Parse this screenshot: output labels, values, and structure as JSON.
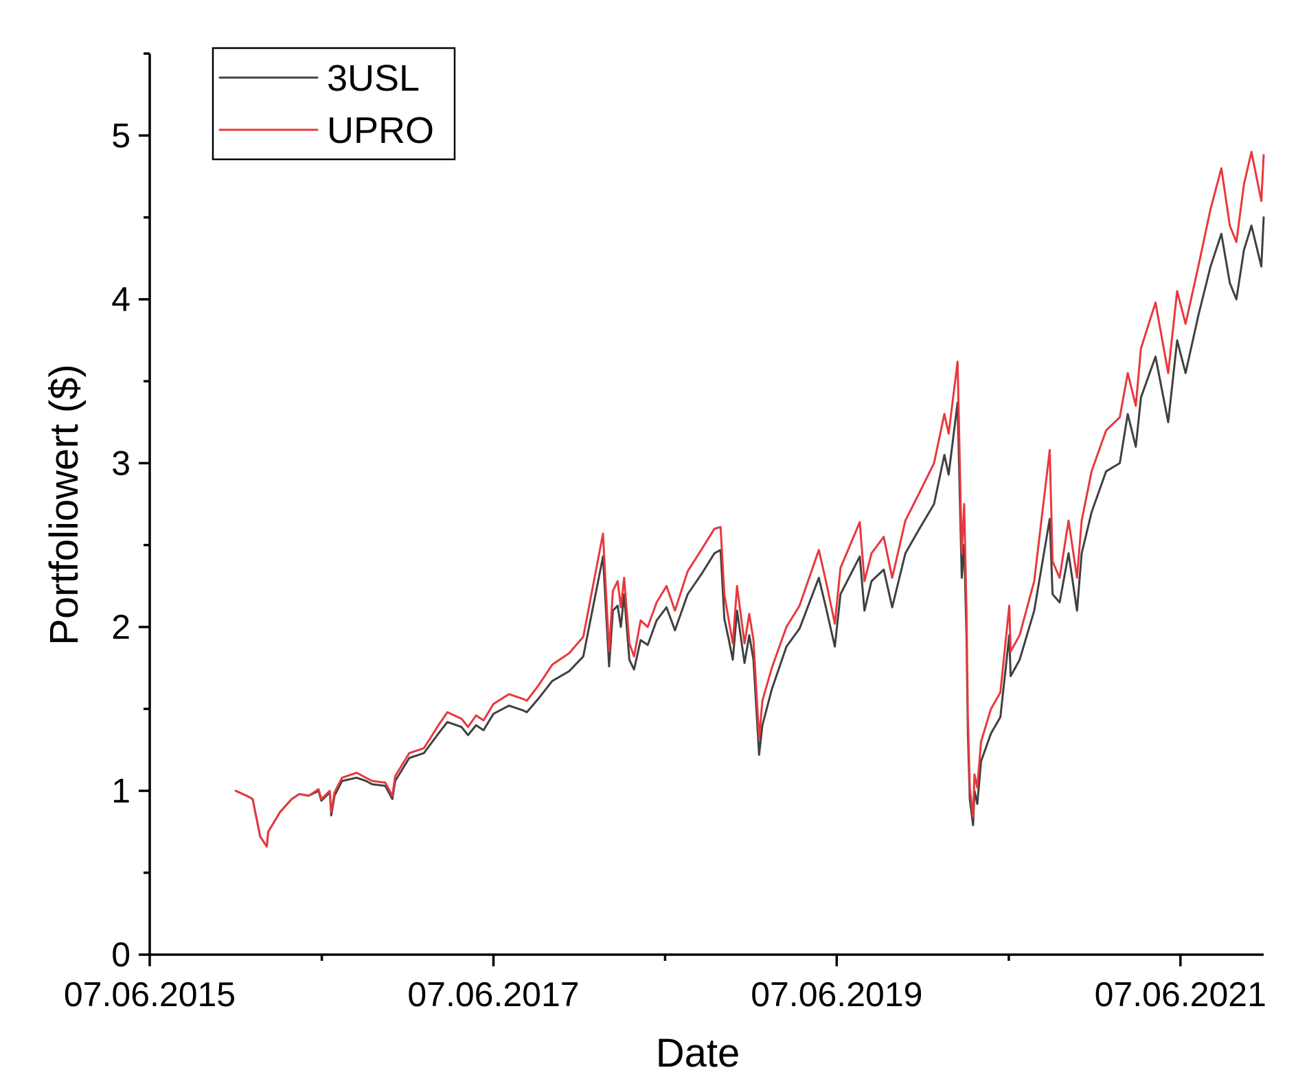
{
  "chart_data": {
    "type": "line",
    "title": "",
    "xlabel": "Date",
    "ylabel": "Portfoliowert ($)",
    "xlim": [
      "2015-06-07",
      "2021-12-01"
    ],
    "ylim": [
      0,
      5.5
    ],
    "x_ticks": [
      {
        "date": "2015-06-07",
        "label": "07.06.2015"
      },
      {
        "date": "2017-06-07",
        "label": "07.06.2017"
      },
      {
        "date": "2019-06-07",
        "label": "07.06.2019"
      },
      {
        "date": "2021-06-07",
        "label": "07.06.2021"
      }
    ],
    "x_minor_ticks": [
      "2016-06-07",
      "2018-06-07",
      "2020-06-07"
    ],
    "y_ticks": [
      0,
      1,
      2,
      3,
      4,
      5
    ],
    "y_minor_step": 0.5,
    "grid": false,
    "legend_position": "top-left",
    "series": [
      {
        "name": "3USL",
        "color": "#404040",
        "points": [
          [
            "2015-12-07",
            1.0
          ],
          [
            "2015-12-30",
            0.97
          ],
          [
            "2016-01-12",
            0.95
          ],
          [
            "2016-01-28",
            0.72
          ],
          [
            "2016-02-11",
            0.66
          ],
          [
            "2016-02-14",
            0.75
          ],
          [
            "2016-03-10",
            0.87
          ],
          [
            "2016-04-04",
            0.95
          ],
          [
            "2016-04-20",
            0.98
          ],
          [
            "2016-05-10",
            0.97
          ],
          [
            "2016-05-31",
            1.0
          ],
          [
            "2016-06-06",
            0.94
          ],
          [
            "2016-06-24",
            0.99
          ],
          [
            "2016-06-27",
            0.85
          ],
          [
            "2016-07-04",
            0.97
          ],
          [
            "2016-07-20",
            1.06
          ],
          [
            "2016-08-20",
            1.08
          ],
          [
            "2016-09-09",
            1.06
          ],
          [
            "2016-09-22",
            1.04
          ],
          [
            "2016-10-20",
            1.03
          ],
          [
            "2016-11-04",
            0.95
          ],
          [
            "2016-11-10",
            1.06
          ],
          [
            "2016-12-10",
            1.2
          ],
          [
            "2017-01-10",
            1.23
          ],
          [
            "2017-02-10",
            1.35
          ],
          [
            "2017-03-01",
            1.42
          ],
          [
            "2017-03-31",
            1.39
          ],
          [
            "2017-04-14",
            1.34
          ],
          [
            "2017-05-01",
            1.4
          ],
          [
            "2017-05-17",
            1.37
          ],
          [
            "2017-06-07",
            1.47
          ],
          [
            "2017-07-10",
            1.52
          ],
          [
            "2017-08-10",
            1.49
          ],
          [
            "2017-08-17",
            1.48
          ],
          [
            "2017-09-10",
            1.56
          ],
          [
            "2017-10-10",
            1.67
          ],
          [
            "2017-11-15",
            1.73
          ],
          [
            "2017-12-15",
            1.82
          ],
          [
            "2018-01-26",
            2.43
          ],
          [
            "2018-02-08",
            1.76
          ],
          [
            "2018-02-16",
            2.1
          ],
          [
            "2018-02-26",
            2.13
          ],
          [
            "2018-03-05",
            2.0
          ],
          [
            "2018-03-12",
            2.2
          ],
          [
            "2018-03-23",
            1.8
          ],
          [
            "2018-04-02",
            1.74
          ],
          [
            "2018-04-16",
            1.92
          ],
          [
            "2018-05-01",
            1.89
          ],
          [
            "2018-05-20",
            2.04
          ],
          [
            "2018-06-10",
            2.12
          ],
          [
            "2018-06-28",
            1.98
          ],
          [
            "2018-07-25",
            2.2
          ],
          [
            "2018-08-25",
            2.33
          ],
          [
            "2018-09-20",
            2.45
          ],
          [
            "2018-10-03",
            2.47
          ],
          [
            "2018-10-11",
            2.05
          ],
          [
            "2018-10-20",
            1.93
          ],
          [
            "2018-10-29",
            1.8
          ],
          [
            "2018-11-07",
            2.1
          ],
          [
            "2018-11-23",
            1.78
          ],
          [
            "2018-12-03",
            1.95
          ],
          [
            "2018-12-12",
            1.8
          ],
          [
            "2018-12-24",
            1.22
          ],
          [
            "2018-12-31",
            1.4
          ],
          [
            "2019-01-20",
            1.62
          ],
          [
            "2019-02-20",
            1.88
          ],
          [
            "2019-03-20",
            1.99
          ],
          [
            "2019-04-30",
            2.3
          ],
          [
            "2019-05-15",
            2.12
          ],
          [
            "2019-06-03",
            1.88
          ],
          [
            "2019-06-15",
            2.2
          ],
          [
            "2019-07-26",
            2.43
          ],
          [
            "2019-08-05",
            2.1
          ],
          [
            "2019-08-20",
            2.28
          ],
          [
            "2019-09-15",
            2.35
          ],
          [
            "2019-10-03",
            2.12
          ],
          [
            "2019-10-31",
            2.45
          ],
          [
            "2019-11-30",
            2.6
          ],
          [
            "2019-12-31",
            2.75
          ],
          [
            "2020-01-22",
            3.05
          ],
          [
            "2020-01-31",
            2.93
          ],
          [
            "2020-02-19",
            3.37
          ],
          [
            "2020-02-28",
            2.3
          ],
          [
            "2020-03-04",
            2.5
          ],
          [
            "2020-03-09",
            1.95
          ],
          [
            "2020-03-12",
            1.35
          ],
          [
            "2020-03-16",
            0.95
          ],
          [
            "2020-03-23",
            0.79
          ],
          [
            "2020-03-26",
            1.0
          ],
          [
            "2020-04-01",
            0.92
          ],
          [
            "2020-04-09",
            1.18
          ],
          [
            "2020-04-30",
            1.35
          ],
          [
            "2020-05-20",
            1.45
          ],
          [
            "2020-06-08",
            1.95
          ],
          [
            "2020-06-11",
            1.7
          ],
          [
            "2020-06-30",
            1.8
          ],
          [
            "2020-07-31",
            2.1
          ],
          [
            "2020-09-02",
            2.66
          ],
          [
            "2020-09-08",
            2.2
          ],
          [
            "2020-09-23",
            2.15
          ],
          [
            "2020-10-12",
            2.45
          ],
          [
            "2020-10-30",
            2.1
          ],
          [
            "2020-11-09",
            2.45
          ],
          [
            "2020-11-30",
            2.7
          ],
          [
            "2020-12-31",
            2.95
          ],
          [
            "2021-01-29",
            3.0
          ],
          [
            "2021-02-15",
            3.3
          ],
          [
            "2021-03-04",
            3.1
          ],
          [
            "2021-03-15",
            3.4
          ],
          [
            "2021-04-15",
            3.65
          ],
          [
            "2021-05-12",
            3.25
          ],
          [
            "2021-05-31",
            3.75
          ],
          [
            "2021-06-18",
            3.55
          ],
          [
            "2021-07-15",
            3.9
          ],
          [
            "2021-08-10",
            4.2
          ],
          [
            "2021-09-02",
            4.4
          ],
          [
            "2021-09-20",
            4.1
          ],
          [
            "2021-10-04",
            4.0
          ],
          [
            "2021-10-20",
            4.3
          ],
          [
            "2021-11-05",
            4.45
          ],
          [
            "2021-11-26",
            4.2
          ],
          [
            "2021-12-01",
            4.5
          ]
        ]
      },
      {
        "name": "UPRO",
        "color": "#e8383d",
        "points": [
          [
            "2015-12-07",
            1.0
          ],
          [
            "2015-12-30",
            0.97
          ],
          [
            "2016-01-12",
            0.95
          ],
          [
            "2016-01-28",
            0.72
          ],
          [
            "2016-02-11",
            0.66
          ],
          [
            "2016-02-14",
            0.75
          ],
          [
            "2016-03-10",
            0.87
          ],
          [
            "2016-04-04",
            0.95
          ],
          [
            "2016-04-20",
            0.98
          ],
          [
            "2016-05-10",
            0.97
          ],
          [
            "2016-05-31",
            1.01
          ],
          [
            "2016-06-06",
            0.95
          ],
          [
            "2016-06-24",
            1.0
          ],
          [
            "2016-06-27",
            0.87
          ],
          [
            "2016-07-04",
            0.99
          ],
          [
            "2016-07-20",
            1.08
          ],
          [
            "2016-08-20",
            1.11
          ],
          [
            "2016-09-09",
            1.08
          ],
          [
            "2016-09-22",
            1.06
          ],
          [
            "2016-10-20",
            1.05
          ],
          [
            "2016-11-04",
            0.97
          ],
          [
            "2016-11-10",
            1.09
          ],
          [
            "2016-12-10",
            1.23
          ],
          [
            "2017-01-10",
            1.26
          ],
          [
            "2017-02-10",
            1.4
          ],
          [
            "2017-03-01",
            1.48
          ],
          [
            "2017-03-31",
            1.44
          ],
          [
            "2017-04-14",
            1.39
          ],
          [
            "2017-05-01",
            1.46
          ],
          [
            "2017-05-17",
            1.43
          ],
          [
            "2017-06-07",
            1.53
          ],
          [
            "2017-07-10",
            1.59
          ],
          [
            "2017-08-10",
            1.56
          ],
          [
            "2017-08-17",
            1.55
          ],
          [
            "2017-09-10",
            1.64
          ],
          [
            "2017-10-10",
            1.77
          ],
          [
            "2017-11-15",
            1.84
          ],
          [
            "2017-12-15",
            1.94
          ],
          [
            "2018-01-26",
            2.57
          ],
          [
            "2018-02-08",
            1.85
          ],
          [
            "2018-02-16",
            2.22
          ],
          [
            "2018-02-26",
            2.28
          ],
          [
            "2018-03-05",
            2.12
          ],
          [
            "2018-03-12",
            2.3
          ],
          [
            "2018-03-23",
            1.9
          ],
          [
            "2018-04-02",
            1.82
          ],
          [
            "2018-04-16",
            2.04
          ],
          [
            "2018-05-01",
            2.0
          ],
          [
            "2018-05-20",
            2.15
          ],
          [
            "2018-06-10",
            2.25
          ],
          [
            "2018-06-28",
            2.1
          ],
          [
            "2018-07-25",
            2.34
          ],
          [
            "2018-08-25",
            2.48
          ],
          [
            "2018-09-20",
            2.6
          ],
          [
            "2018-10-03",
            2.61
          ],
          [
            "2018-10-11",
            2.2
          ],
          [
            "2018-10-20",
            2.05
          ],
          [
            "2018-10-29",
            1.9
          ],
          [
            "2018-11-07",
            2.25
          ],
          [
            "2018-11-23",
            1.9
          ],
          [
            "2018-12-03",
            2.08
          ],
          [
            "2018-12-12",
            1.92
          ],
          [
            "2018-12-24",
            1.32
          ],
          [
            "2018-12-31",
            1.55
          ],
          [
            "2019-01-20",
            1.75
          ],
          [
            "2019-02-20",
            2.0
          ],
          [
            "2019-03-20",
            2.13
          ],
          [
            "2019-04-30",
            2.47
          ],
          [
            "2019-05-15",
            2.28
          ],
          [
            "2019-06-03",
            2.02
          ],
          [
            "2019-06-15",
            2.36
          ],
          [
            "2019-07-26",
            2.64
          ],
          [
            "2019-08-05",
            2.28
          ],
          [
            "2019-08-20",
            2.45
          ],
          [
            "2019-09-15",
            2.55
          ],
          [
            "2019-10-03",
            2.3
          ],
          [
            "2019-10-31",
            2.65
          ],
          [
            "2019-11-30",
            2.82
          ],
          [
            "2019-12-31",
            3.0
          ],
          [
            "2020-01-22",
            3.3
          ],
          [
            "2020-01-31",
            3.18
          ],
          [
            "2020-02-19",
            3.62
          ],
          [
            "2020-02-28",
            2.45
          ],
          [
            "2020-03-04",
            2.75
          ],
          [
            "2020-03-09",
            2.1
          ],
          [
            "2020-03-12",
            1.45
          ],
          [
            "2020-03-16",
            1.02
          ],
          [
            "2020-03-23",
            0.84
          ],
          [
            "2020-03-26",
            1.1
          ],
          [
            "2020-04-01",
            1.02
          ],
          [
            "2020-04-09",
            1.3
          ],
          [
            "2020-04-30",
            1.5
          ],
          [
            "2020-05-20",
            1.6
          ],
          [
            "2020-06-08",
            2.13
          ],
          [
            "2020-06-11",
            1.85
          ],
          [
            "2020-06-30",
            1.95
          ],
          [
            "2020-07-31",
            2.28
          ],
          [
            "2020-09-02",
            3.08
          ],
          [
            "2020-09-08",
            2.4
          ],
          [
            "2020-09-23",
            2.3
          ],
          [
            "2020-10-12",
            2.65
          ],
          [
            "2020-10-30",
            2.3
          ],
          [
            "2020-11-09",
            2.65
          ],
          [
            "2020-11-30",
            2.95
          ],
          [
            "2020-12-31",
            3.2
          ],
          [
            "2021-01-29",
            3.28
          ],
          [
            "2021-02-15",
            3.55
          ],
          [
            "2021-03-04",
            3.35
          ],
          [
            "2021-03-15",
            3.7
          ],
          [
            "2021-04-15",
            3.98
          ],
          [
            "2021-05-12",
            3.55
          ],
          [
            "2021-05-31",
            4.05
          ],
          [
            "2021-06-18",
            3.85
          ],
          [
            "2021-07-15",
            4.2
          ],
          [
            "2021-08-10",
            4.55
          ],
          [
            "2021-09-02",
            4.8
          ],
          [
            "2021-09-20",
            4.45
          ],
          [
            "2021-10-04",
            4.35
          ],
          [
            "2021-10-20",
            4.7
          ],
          [
            "2021-11-05",
            4.9
          ],
          [
            "2021-11-26",
            4.6
          ],
          [
            "2021-12-01",
            4.88
          ]
        ]
      }
    ]
  }
}
